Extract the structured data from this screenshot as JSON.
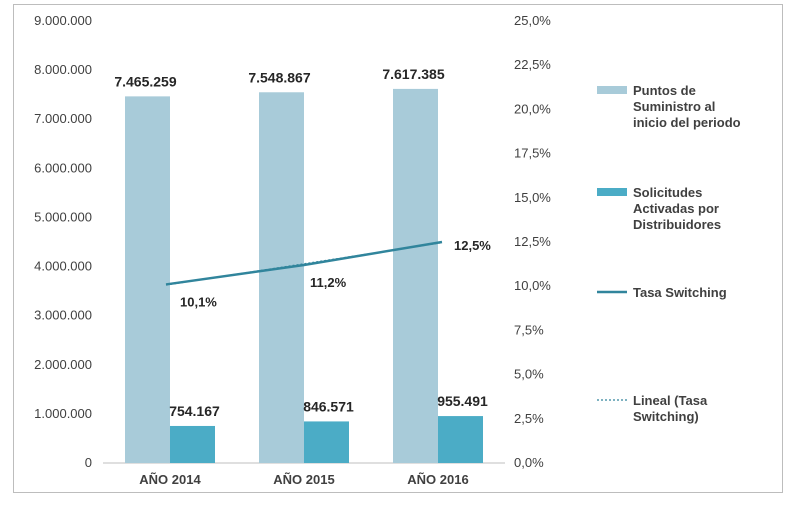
{
  "chart_data": {
    "type": "bar",
    "categories": [
      "AÑO 2014",
      "AÑO 2015",
      "AÑO 2016"
    ],
    "series": [
      {
        "name": "Puntos de Suministro al inicio del periodo",
        "legend_lines": [
          "Puntos de",
          "Suministro al",
          "inicio del periodo"
        ],
        "axis": "left",
        "kind": "bar",
        "color": "#a8cbd9",
        "values": [
          7465259,
          7548867,
          7617385
        ],
        "labels": [
          "7.465.259",
          "7.548.867",
          "7.617.385"
        ]
      },
      {
        "name": "Solicitudes Activadas por Distribuidores",
        "legend_lines": [
          "Solicitudes",
          "Activadas por",
          "Distribuidores"
        ],
        "axis": "left",
        "kind": "bar",
        "color": "#4bacc6",
        "values": [
          754167,
          846571,
          955491
        ],
        "labels": [
          "754.167",
          "846.571",
          "955.491"
        ]
      },
      {
        "name": "Tasa Switching",
        "legend_lines": [
          "Tasa Switching"
        ],
        "axis": "right",
        "kind": "line",
        "color": "#31859c",
        "values": [
          10.1,
          11.2,
          12.5
        ],
        "labels": [
          "10,1%",
          "11,2%",
          "12,5%"
        ]
      },
      {
        "name": "Lineal (Tasa Switching)",
        "legend_lines": [
          "Lineal (Tasa",
          "Switching)"
        ],
        "axis": "right",
        "kind": "trendline",
        "color": "#31859c",
        "values": [
          10.1,
          11.2,
          12.5
        ]
      }
    ],
    "y_left": {
      "ylim": [
        0,
        9000000
      ],
      "ticks": [
        0,
        1000000,
        2000000,
        3000000,
        4000000,
        5000000,
        6000000,
        7000000,
        8000000,
        9000000
      ],
      "tick_labels": [
        "0",
        "1.000.000",
        "2.000.000",
        "3.000.000",
        "4.000.000",
        "5.000.000",
        "6.000.000",
        "7.000.000",
        "8.000.000",
        "9.000.000"
      ]
    },
    "y_right": {
      "ylim": [
        0,
        25
      ],
      "ticks": [
        0,
        2.5,
        5,
        7.5,
        10,
        12.5,
        15,
        17.5,
        20,
        22.5,
        25
      ],
      "tick_labels": [
        "0,0%",
        "2,5%",
        "5,0%",
        "7,5%",
        "10,0%",
        "12,5%",
        "15,0%",
        "17,5%",
        "20,0%",
        "22,5%",
        "25,0%"
      ]
    },
    "grid": false,
    "legend_position": "right"
  }
}
